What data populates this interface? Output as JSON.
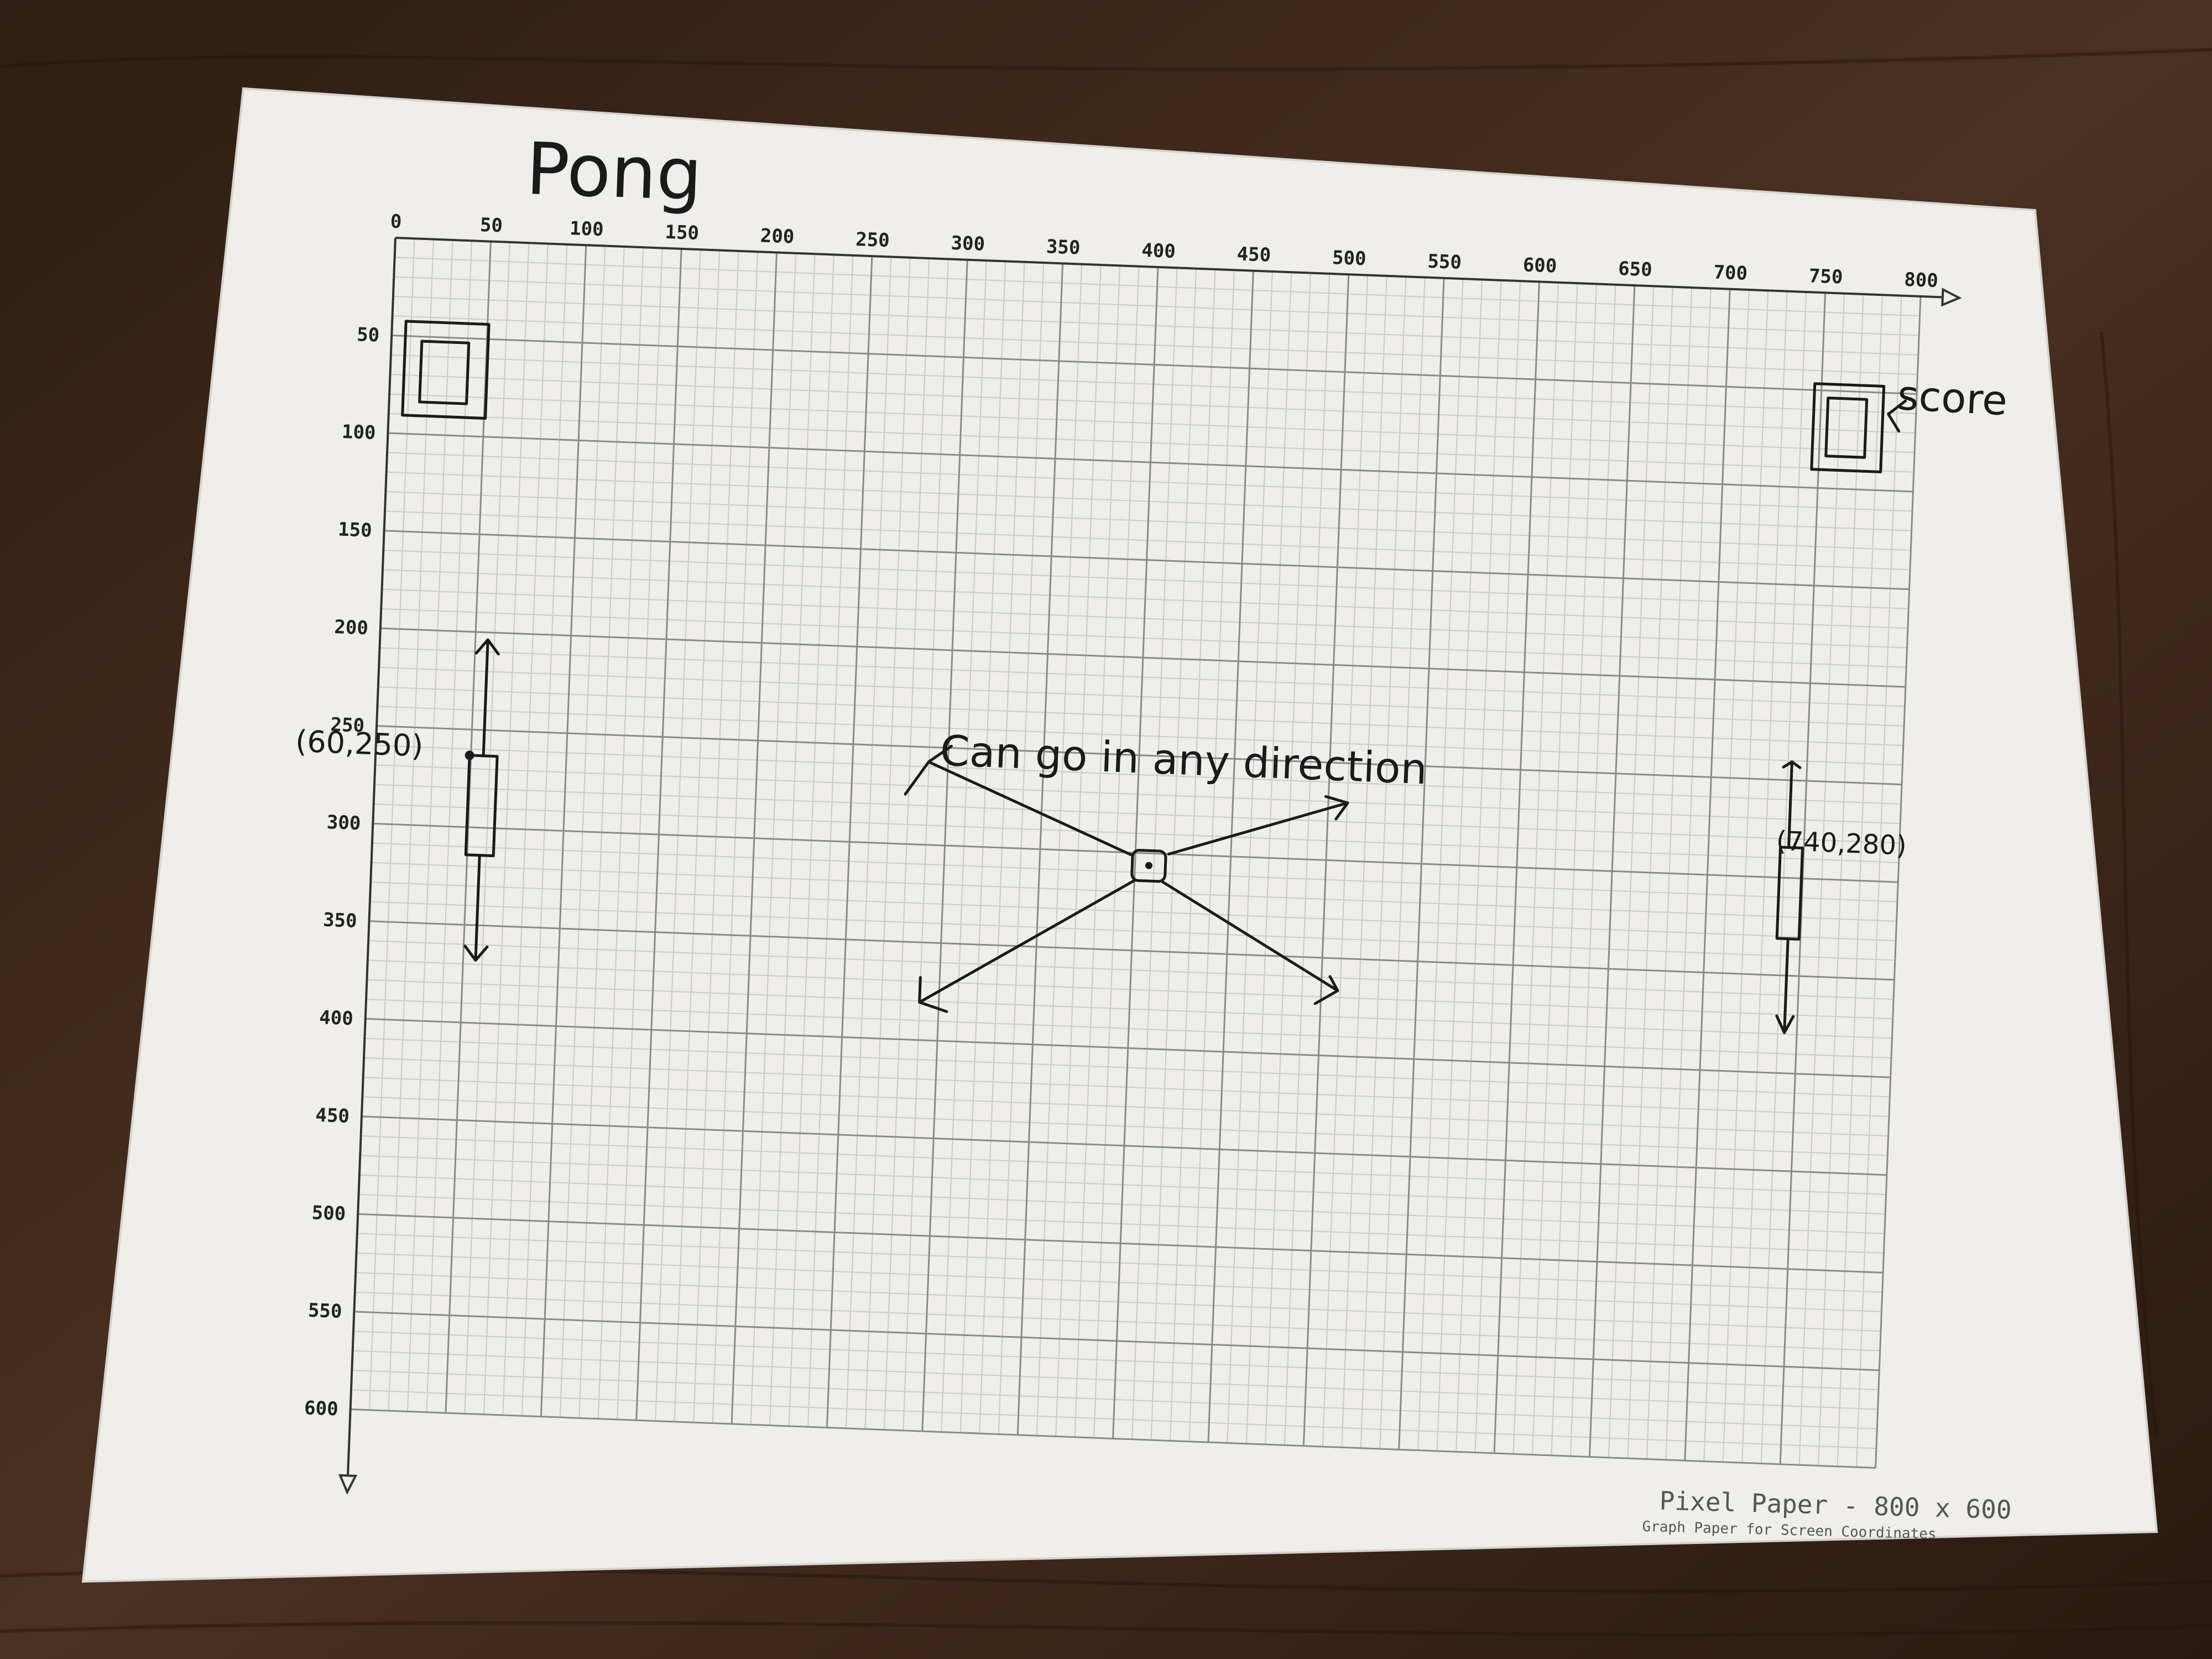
{
  "title": "Pong",
  "x_axis_labels": [
    "0",
    "50",
    "100",
    "150",
    "200",
    "250",
    "300",
    "350",
    "400",
    "450",
    "500",
    "550",
    "600",
    "650",
    "700",
    "750",
    "800"
  ],
  "y_axis_labels": [
    "50",
    "100",
    "150",
    "200",
    "250",
    "300",
    "350",
    "400",
    "450",
    "500",
    "550",
    "600"
  ],
  "annotations": {
    "score": "score",
    "left_paddle_coord": "(60,250)",
    "right_paddle_coord": "(740,280)",
    "ball_direction": "Can go in any direction"
  },
  "footer": {
    "title": "Pixel Paper - 800 x 600",
    "subtitle": "Graph Paper for Screen Coordinates"
  },
  "colors": {
    "table_wood": "#3a2618",
    "paper": "#efeeea",
    "grid_minor": "#c9c9c9",
    "grid_major": "#8a8a8a",
    "ink": "#1a1a1a"
  }
}
